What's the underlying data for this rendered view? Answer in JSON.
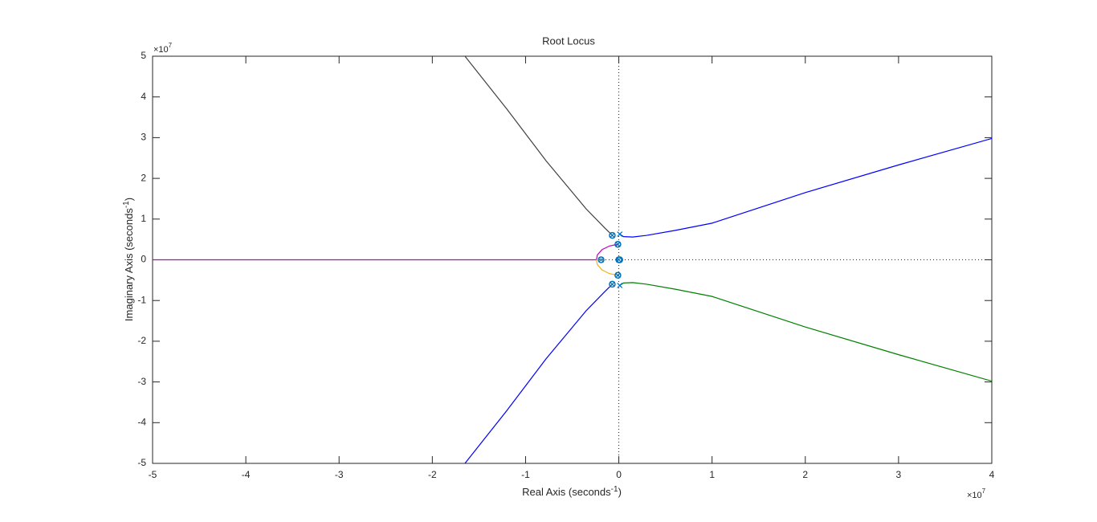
{
  "chart_data": {
    "type": "line",
    "title": "Root Locus",
    "xlabel": [
      "Real Axis (seconds",
      "-1",
      ")"
    ],
    "ylabel": [
      "Imaginary Axis (seconds",
      "-1",
      ")"
    ],
    "x_multiplier": [
      "×10",
      "7"
    ],
    "y_multiplier": [
      "×10",
      "7"
    ],
    "xlim": [
      -5,
      4
    ],
    "ylim": [
      -5,
      5
    ],
    "xticks": [
      -5,
      -4,
      -3,
      -2,
      -1,
      0,
      1,
      2,
      3,
      4
    ],
    "yticks": [
      -5,
      -4,
      -3,
      -2,
      -1,
      0,
      1,
      2,
      3,
      4,
      5
    ],
    "grid": false,
    "series": [
      {
        "color": "#404040",
        "x": [
          -0.07,
          -0.15,
          -0.35,
          -0.55,
          -0.78,
          -1.2,
          -1.65
        ],
        "values": [
          0.6,
          0.78,
          1.25,
          1.8,
          2.43,
          3.7,
          5
        ]
      },
      {
        "color": "#0000ff",
        "x": [
          0.01,
          0.05,
          0.15,
          0.3,
          0.6,
          1,
          2,
          3,
          4
        ],
        "values": [
          0.63,
          0.57,
          0.56,
          0.6,
          0.72,
          0.9,
          1.65,
          2.33,
          2.98
        ]
      },
      {
        "color": "#008000",
        "x": [
          0.01,
          0.05,
          0.15,
          0.3,
          0.6,
          1,
          2,
          3,
          4
        ],
        "values": [
          -0.63,
          -0.57,
          -0.56,
          -0.6,
          -0.72,
          -0.9,
          -1.65,
          -2.33,
          -2.98
        ]
      },
      {
        "color": "#0000ff",
        "x": [
          -0.07,
          -0.15,
          -0.35,
          -0.55,
          -0.78,
          -1.2,
          -1.65
        ],
        "values": [
          -0.6,
          -0.78,
          -1.25,
          -1.8,
          -2.43,
          -3.7,
          -5
        ]
      },
      {
        "color": "#bf00bf",
        "x": [
          -0.01,
          -0.1,
          -0.18,
          -0.23,
          -0.24,
          -5
        ],
        "values": [
          0.38,
          0.34,
          0.25,
          0.12,
          0,
          0
        ]
      },
      {
        "color": "#edb120",
        "x": [
          -0.01,
          -0.1,
          -0.18,
          -0.23,
          -0.24
        ],
        "values": [
          -0.38,
          -0.34,
          -0.25,
          -0.12,
          0
        ]
      }
    ],
    "poles": {
      "color": "#0072bd",
      "x": [
        -0.07,
        -0.07,
        -0.01,
        -0.01,
        -0.19,
        0,
        0.01,
        0.01
      ],
      "values": [
        0.6,
        -0.6,
        0.38,
        -0.38,
        0,
        0,
        0.63,
        -0.63
      ]
    },
    "zeros": {
      "color": "#0072bd",
      "x": [
        -0.07,
        -0.07,
        -0.01,
        -0.01,
        -0.19,
        0,
        0.01
      ],
      "values": [
        0.6,
        -0.6,
        0.38,
        -0.38,
        0,
        0,
        0
      ]
    }
  }
}
